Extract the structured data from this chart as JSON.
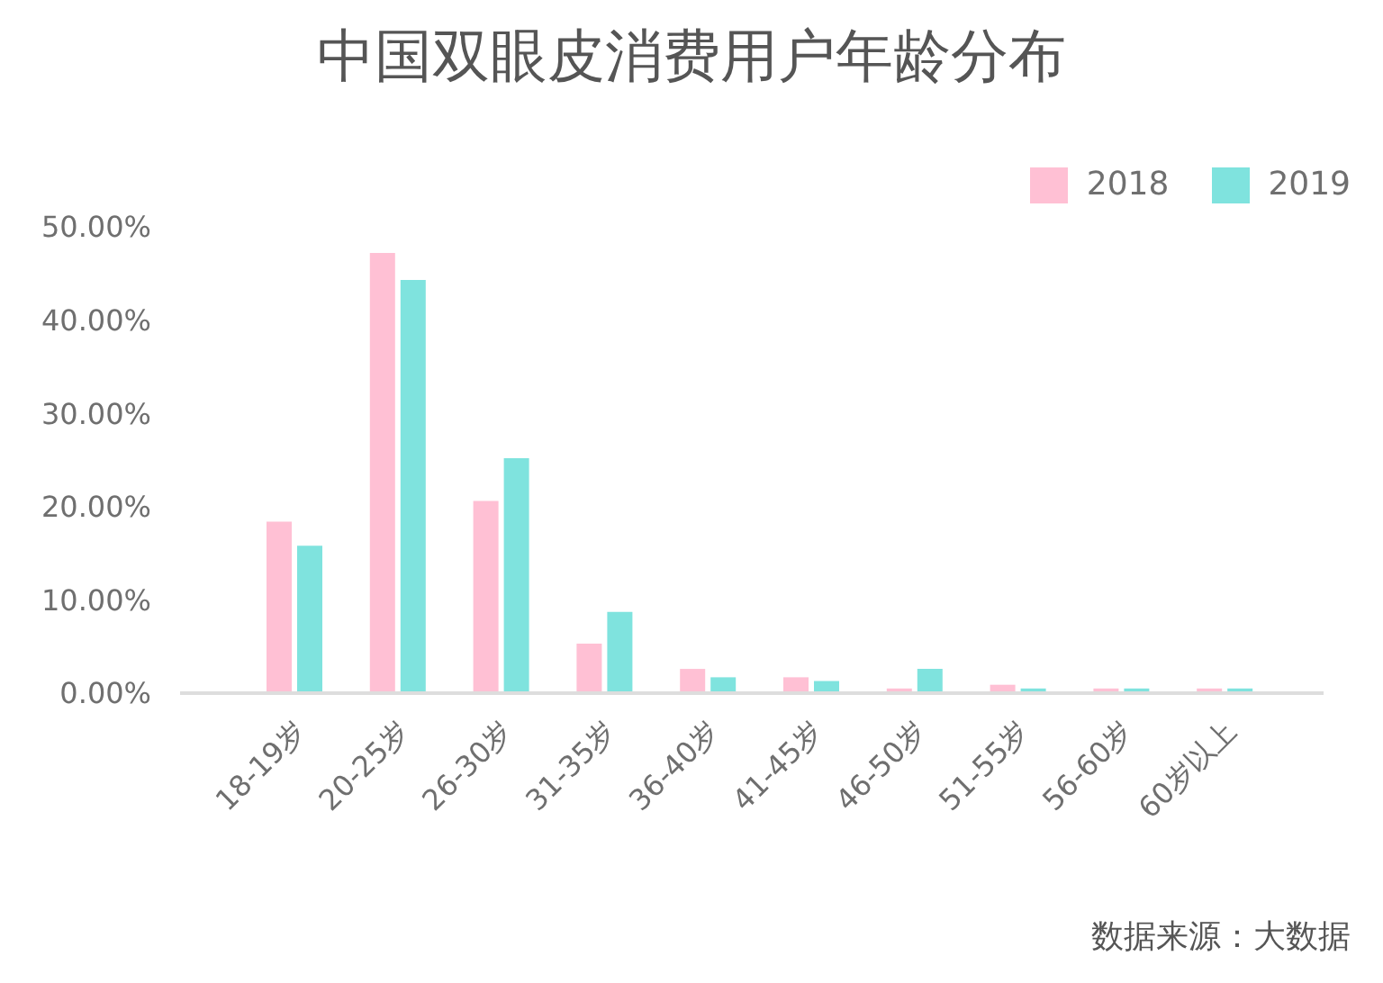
{
  "chart_data": {
    "type": "bar",
    "title": "中国双眼皮消费用户年龄分布",
    "categories": [
      "18-19岁",
      "20-25岁",
      "26-30岁",
      "31-35岁",
      "36-40岁",
      "41-45岁",
      "46-50岁",
      "51-55岁",
      "56-60岁",
      "60岁以上"
    ],
    "series": [
      {
        "name": "2018",
        "color": "#ffc0d4",
        "values": [
          18.4,
          47.2,
          20.6,
          5.3,
          2.6,
          1.7,
          0.5,
          0.9,
          0.5,
          0.5
        ]
      },
      {
        "name": "2019",
        "color": "#7fe3de",
        "values": [
          15.8,
          44.3,
          25.2,
          8.7,
          1.7,
          1.3,
          2.6,
          0.5,
          0.5,
          0.5
        ]
      }
    ],
    "ylim": [
      0,
      50
    ],
    "yticks": [
      {
        "value": 0,
        "label": "0.00%"
      },
      {
        "value": 10,
        "label": "10.00%"
      },
      {
        "value": 20,
        "label": "20.00%"
      },
      {
        "value": 30,
        "label": "30.00%"
      },
      {
        "value": 40,
        "label": "40.00%"
      },
      {
        "value": 50,
        "label": "50.00%"
      }
    ],
    "legend": "top right",
    "annotations": [
      "数据来源：大数据"
    ]
  }
}
